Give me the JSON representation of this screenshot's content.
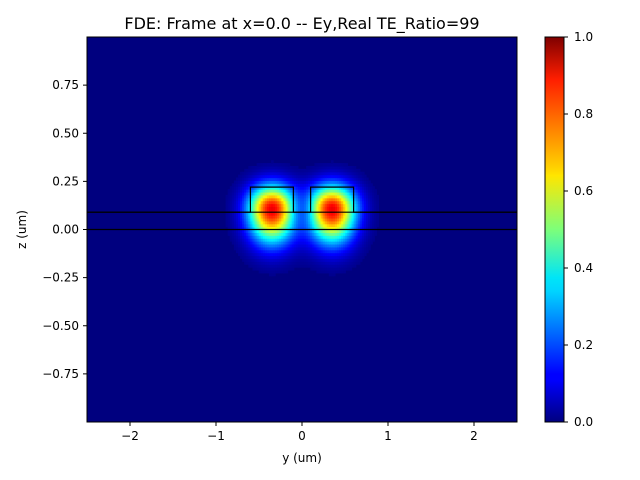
{
  "chart_data": {
    "type": "heatmap",
    "title": "FDE: Frame at x=0.0 -- Ey,Real TE_Ratio=99",
    "xlabel": "y (um)",
    "ylabel": "z (um)",
    "xlim": [
      -2.5,
      2.5
    ],
    "ylim": [
      -1.0,
      1.0
    ],
    "xticks": [
      -2,
      -1,
      0,
      1,
      2
    ],
    "xtick_labels": [
      "−2",
      "−1",
      "0",
      "1",
      "2"
    ],
    "yticks": [
      -0.75,
      -0.5,
      -0.25,
      0.0,
      0.25,
      0.5,
      0.75
    ],
    "ytick_labels": [
      "−0.75",
      "−0.50",
      "−0.25",
      "0.00",
      "0.25",
      "0.50",
      "0.75"
    ],
    "colormap": "jet",
    "colorbar": {
      "range": [
        0.0,
        1.0
      ],
      "ticks": [
        0.0,
        0.2,
        0.4,
        0.6,
        0.8,
        1.0
      ],
      "tick_labels": [
        "0.0",
        "0.2",
        "0.4",
        "0.6",
        "0.8",
        "1.0"
      ]
    },
    "field_peaks": [
      {
        "y": -0.35,
        "z": 0.11,
        "value": 0.85
      },
      {
        "y": 0.35,
        "z": 0.11,
        "value": 0.85
      }
    ],
    "structure_outline": {
      "lines_z": [
        0.0,
        0.09
      ],
      "ridge_profile": [
        [
          -2.5,
          0.09
        ],
        [
          -0.6,
          0.09
        ],
        [
          -0.6,
          0.22
        ],
        [
          -0.1,
          0.22
        ],
        [
          -0.1,
          0.09
        ],
        [
          0.1,
          0.09
        ],
        [
          0.1,
          0.22
        ],
        [
          0.6,
          0.22
        ],
        [
          0.6,
          0.09
        ],
        [
          2.5,
          0.09
        ]
      ]
    },
    "grid": false,
    "legend": "none"
  }
}
